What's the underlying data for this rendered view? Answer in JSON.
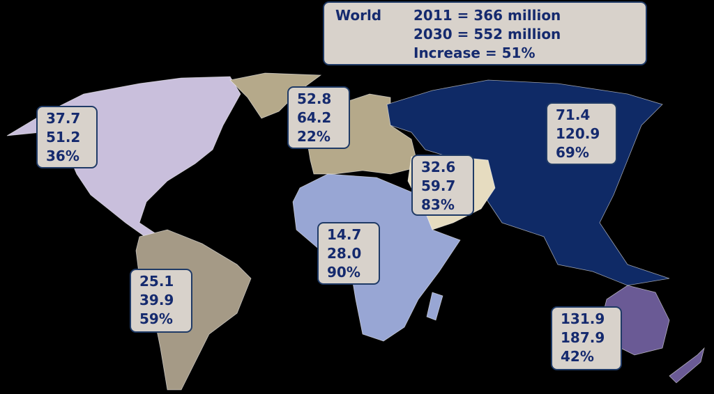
{
  "world": {
    "label": "World",
    "lines": [
      "2011 = 366 million",
      "2030 = 552 million",
      "Increase = 51%"
    ]
  },
  "regions": [
    {
      "lines": [
        "37.7",
        "51.2",
        "36%"
      ]
    },
    {
      "lines": [
        "52.8",
        "64.2",
        "22%"
      ]
    },
    {
      "lines": [
        "71.4",
        "120.9",
        "69%"
      ]
    },
    {
      "lines": [
        "32.6",
        "59.7",
        "83%"
      ]
    },
    {
      "lines": [
        "14.7",
        "28.0",
        "90%"
      ]
    },
    {
      "lines": [
        "25.1",
        "39.9",
        "59%"
      ]
    },
    {
      "lines": [
        "131.9",
        "187.9",
        "42%"
      ]
    }
  ]
}
